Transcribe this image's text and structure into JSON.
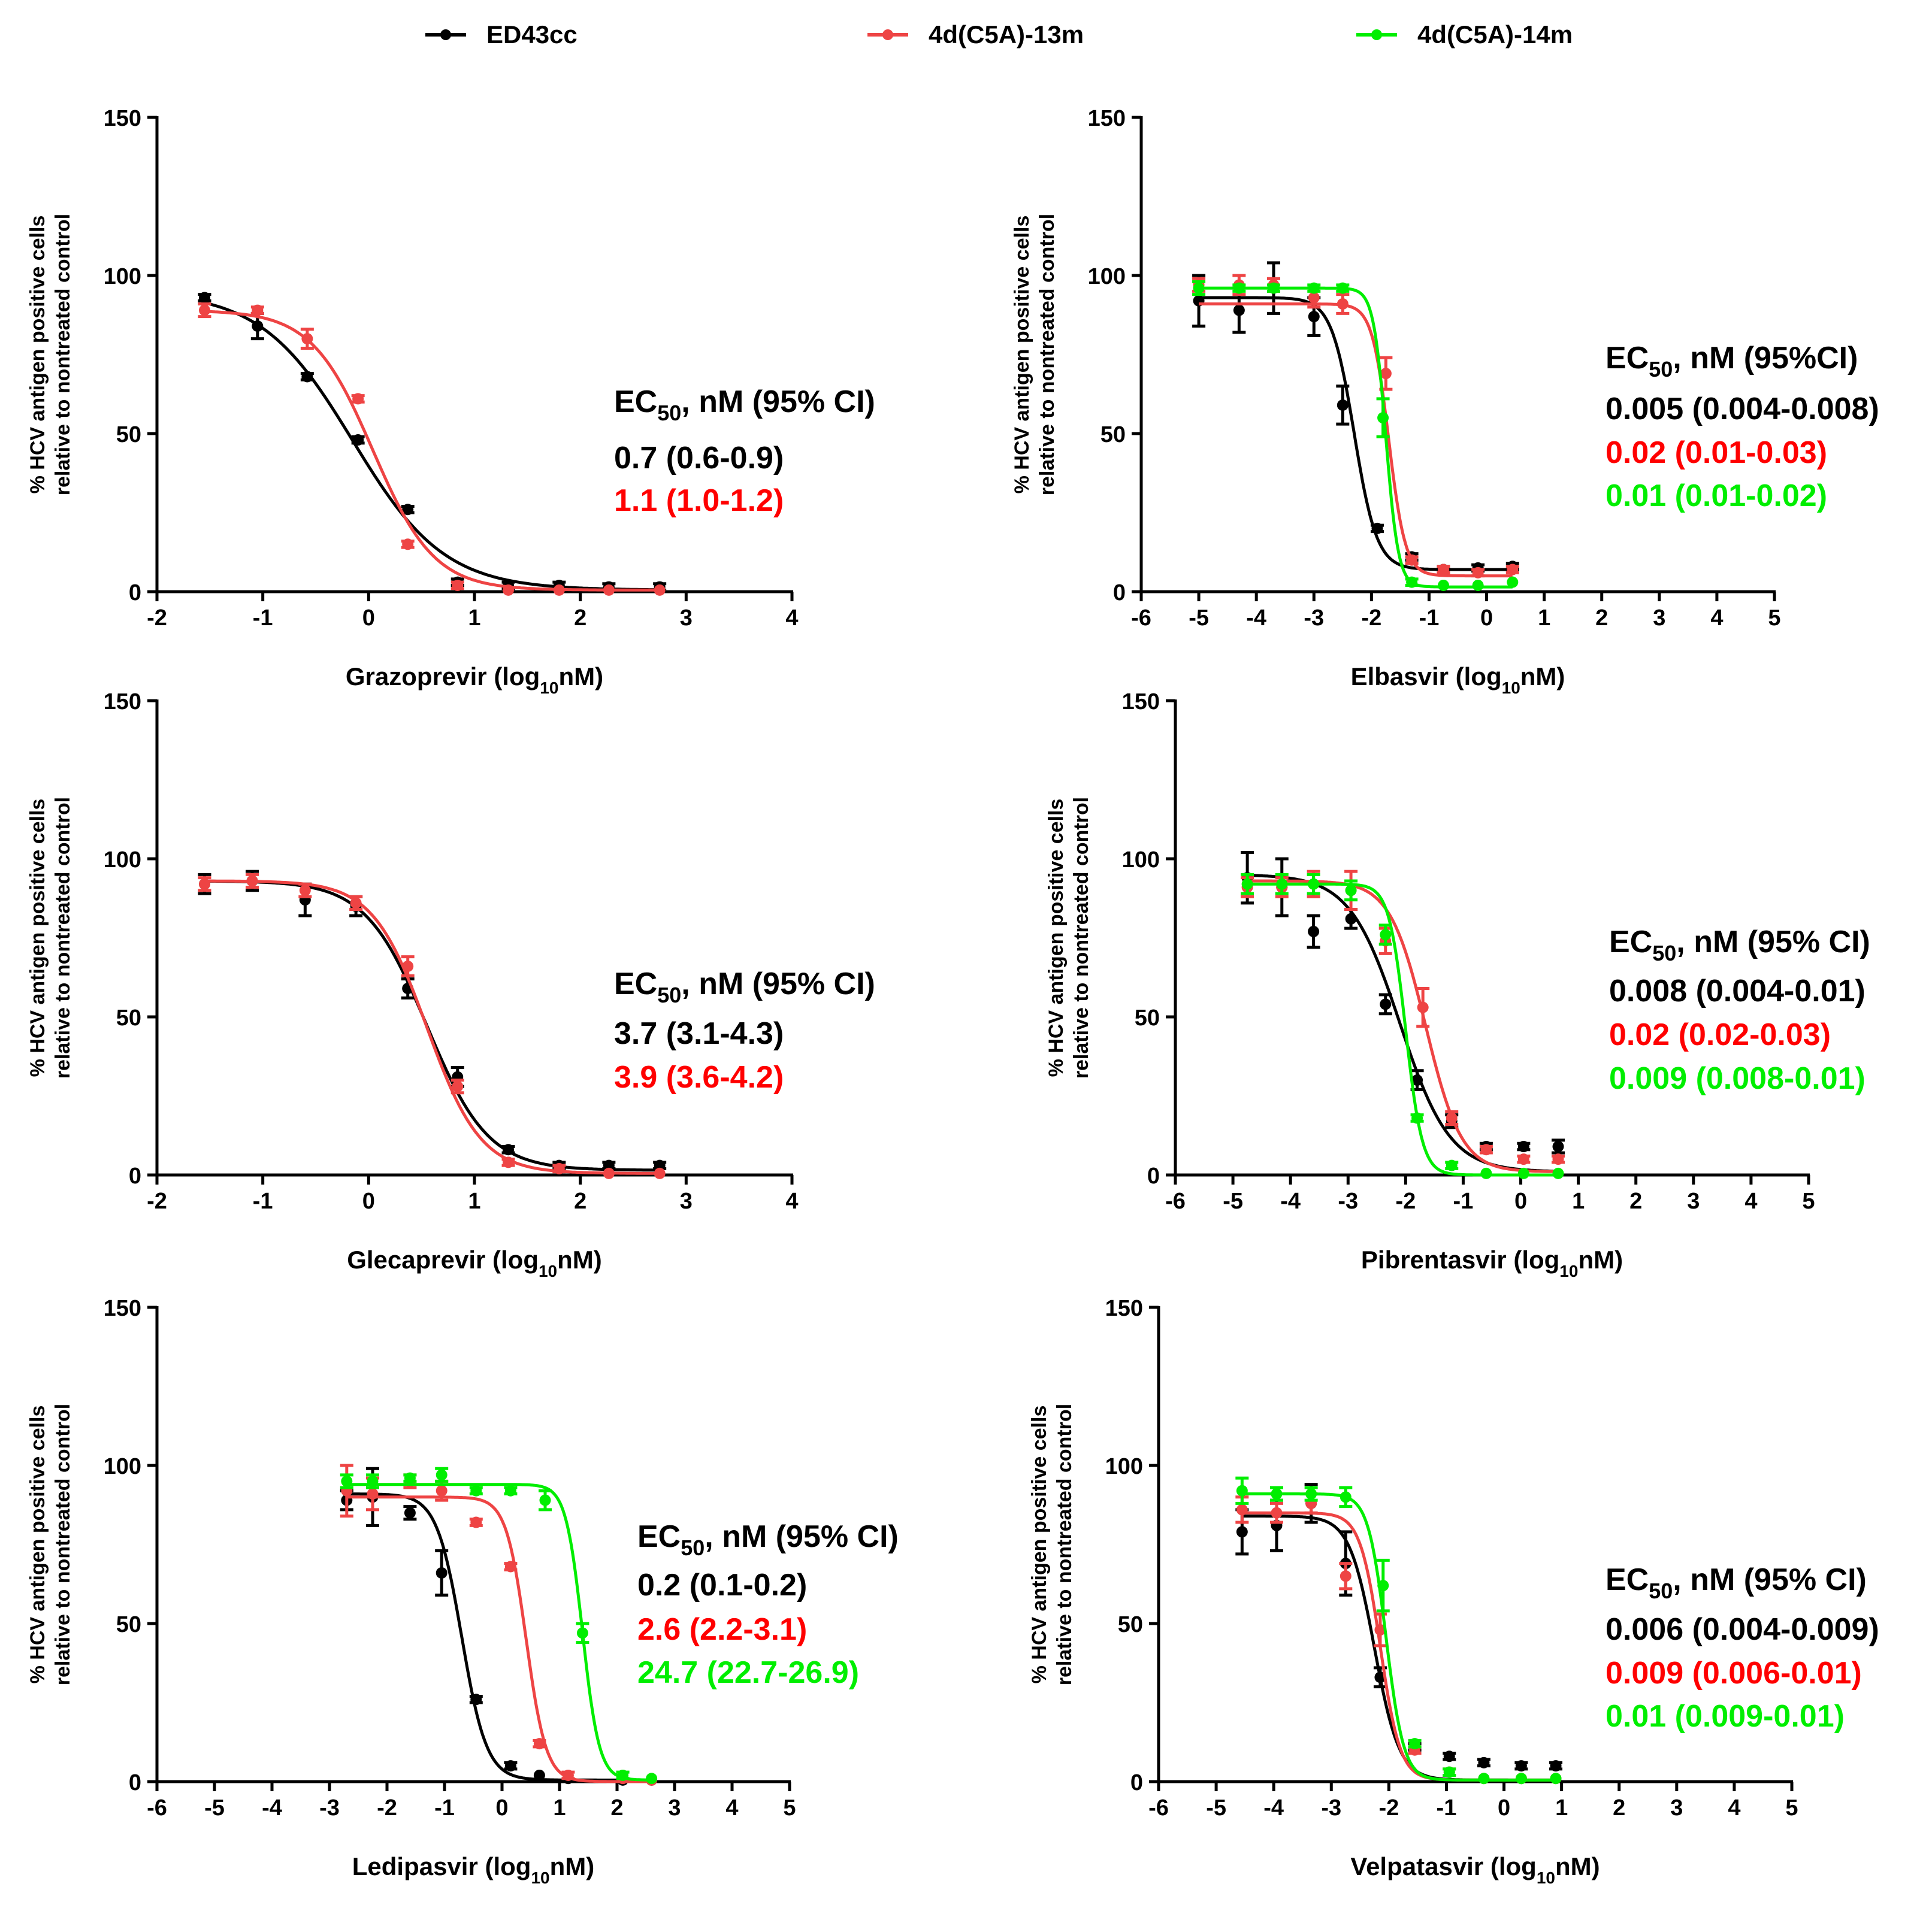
{
  "legend": {
    "entries": [
      {
        "name": "ED43cc",
        "color": "#000000"
      },
      {
        "name": "4d(C5A)-13m",
        "color": "#ee4444"
      },
      {
        "name": "4d(C5A)-14m",
        "color": "#00ee00"
      }
    ]
  },
  "colors": {
    "ED43cc": "#000000",
    "4d(C5A)-13m": "#ee4444",
    "4d(C5A)-14m": "#00ee00",
    "label_red": "#ff0000",
    "label_green": "#00ee00"
  },
  "chart_data": [
    {
      "type": "line",
      "id": "grazoprevir",
      "ylabel_line1": "% HCV antigen positive cells",
      "ylabel_line2": "relative to nontreated control",
      "xlabel_pre": "Grazoprevir (log",
      "xlabel_sub": "10",
      "xlabel_post": "nM)",
      "xlim": [
        -2,
        4
      ],
      "xticks": [
        -2,
        -1,
        0,
        1,
        2,
        3,
        4
      ],
      "ylim": [
        0,
        150
      ],
      "yticks": [
        0,
        50,
        100,
        150
      ],
      "ec50": {
        "header_pre": "EC",
        "header_sub": "50",
        "header_post": ", nM (95% CI)",
        "lines": [
          {
            "text": "0.7 (0.6-0.9)",
            "color": "#000000"
          },
          {
            "text": "1.1 (1.0-1.2)",
            "color": "#ff0000"
          }
        ]
      },
      "series": [
        {
          "name": "ED43cc",
          "color": "#000000",
          "top": 95,
          "bottom": 0.5,
          "logEC50": -0.15,
          "hill": -1.0,
          "x": [
            -1.55,
            -1.05,
            -0.58,
            -0.1,
            0.37,
            0.84,
            1.32,
            1.8,
            2.27,
            2.75
          ],
          "y": [
            93,
            84,
            68,
            48,
            26,
            3,
            2,
            2,
            1.5,
            1.5
          ],
          "err": [
            1,
            4,
            1,
            1,
            1,
            1,
            1,
            1,
            1,
            1
          ]
        },
        {
          "name": "4d(C5A)-13m",
          "color": "#ee4444",
          "top": 89,
          "bottom": 0.5,
          "logEC50": 0.04,
          "hill": -1.5,
          "x": [
            -1.55,
            -1.05,
            -0.58,
            -0.1,
            0.37,
            0.84,
            1.32,
            1.8,
            2.27,
            2.75
          ],
          "y": [
            89,
            89,
            80,
            61,
            15,
            2,
            0.5,
            0.5,
            0.5,
            0.5
          ],
          "err": [
            2,
            1,
            3,
            1,
            1,
            1,
            0.5,
            0.5,
            0.5,
            0.5
          ]
        }
      ]
    },
    {
      "type": "line",
      "id": "elbasvir",
      "ylabel_line1": "% HCV antigen positive cells",
      "ylabel_line2": "relative to nontreated control",
      "xlabel_pre": "Elbasvir (log",
      "xlabel_sub": "10",
      "xlabel_post": "nM)",
      "xlim": [
        -6,
        5
      ],
      "xticks": [
        -6,
        -5,
        -4,
        -3,
        -2,
        -1,
        0,
        1,
        2,
        3,
        4,
        5
      ],
      "ylim": [
        0,
        150
      ],
      "yticks": [
        0,
        50,
        100,
        150
      ],
      "ec50": {
        "header_pre": "EC",
        "header_sub": "50",
        "header_post": ", nM (95%CI)",
        "lines": [
          {
            "text": "0.005 (0.004-0.008)",
            "color": "#000000"
          },
          {
            "text": "0.02 (0.01-0.03)",
            "color": "#ff0000"
          },
          {
            "text": "0.01 (0.01-0.02)",
            "color": "#00ee00"
          }
        ]
      },
      "series": [
        {
          "name": "ED43cc",
          "color": "#000000",
          "top": 93,
          "bottom": 7,
          "logEC50": -2.3,
          "hill": -2.2,
          "x": [
            -5.0,
            -4.3,
            -3.7,
            -3.0,
            -2.5,
            -1.9,
            -1.3,
            -0.75,
            -0.15,
            0.45
          ],
          "y": [
            92,
            89,
            96,
            87,
            59,
            20,
            11,
            7,
            7.5,
            8
          ],
          "err": [
            8,
            7,
            8,
            6,
            6,
            1,
            1,
            1,
            1,
            1
          ]
        },
        {
          "name": "4d(C5A)-13m",
          "color": "#ee4444",
          "top": 91,
          "bottom": 5,
          "logEC50": -1.7,
          "hill": -3.0,
          "x": [
            -5.0,
            -4.3,
            -3.7,
            -3.0,
            -2.5,
            -1.75,
            -1.3,
            -0.75,
            -0.15,
            0.45
          ],
          "y": [
            97,
            97,
            97,
            93,
            91,
            69,
            10,
            7,
            6,
            7
          ],
          "err": [
            2,
            3,
            2,
            3,
            3,
            5,
            1,
            1,
            1,
            1
          ]
        },
        {
          "name": "4d(C5A)-14m",
          "color": "#00ee00",
          "top": 96,
          "bottom": 1.5,
          "logEC50": -1.75,
          "hill": -4.0,
          "x": [
            -5.0,
            -4.3,
            -3.7,
            -3.0,
            -2.5,
            -1.8,
            -1.3,
            -0.75,
            -0.15,
            0.45
          ],
          "y": [
            96,
            96,
            96,
            96,
            96,
            55,
            3,
            2,
            2,
            3
          ],
          "err": [
            2,
            1,
            1,
            1,
            1,
            6,
            1,
            0.5,
            0.5,
            0.5
          ]
        }
      ]
    },
    {
      "type": "line",
      "id": "glecaprevir",
      "ylabel_line1": "% HCV antigen positive cells",
      "ylabel_line2": "relative to nontreated control",
      "xlabel_pre": "Glecaprevir (log",
      "xlabel_sub": "10",
      "xlabel_post": "nM)",
      "xlim": [
        -2,
        4
      ],
      "xticks": [
        -2,
        -1,
        0,
        1,
        2,
        3,
        4
      ],
      "ylim": [
        0,
        150
      ],
      "yticks": [
        0,
        50,
        100,
        150
      ],
      "ec50": {
        "header_pre": "EC",
        "header_sub": "50",
        "header_post": ", nM (95% CI)",
        "lines": [
          {
            "text": "3.7 (3.1-4.3)",
            "color": "#000000"
          },
          {
            "text": "3.9 (3.6-4.2)",
            "color": "#ff0000"
          }
        ]
      },
      "series": [
        {
          "name": "ED43cc",
          "color": "#000000",
          "top": 93,
          "bottom": 1.5,
          "logEC50": 0.55,
          "hill": -1.5,
          "x": [
            -1.55,
            -1.1,
            -0.6,
            -0.12,
            0.37,
            0.84,
            1.32,
            1.8,
            2.27,
            2.75
          ],
          "y": [
            92,
            93,
            87,
            85,
            59,
            31,
            8,
            3,
            3,
            3
          ],
          "err": [
            3,
            3,
            5,
            3,
            3,
            3,
            1,
            1,
            1,
            1
          ]
        },
        {
          "name": "4d(C5A)-13m",
          "color": "#ee4444",
          "top": 93,
          "bottom": 0.5,
          "logEC50": 0.55,
          "hill": -1.7,
          "x": [
            -1.55,
            -1.1,
            -0.6,
            -0.12,
            0.37,
            0.84,
            1.32,
            1.8,
            2.27,
            2.75
          ],
          "y": [
            92,
            93,
            90,
            86,
            66,
            28,
            4,
            2,
            0.5,
            0.5
          ],
          "err": [
            2,
            2,
            2,
            2,
            3,
            2,
            1,
            1,
            0.5,
            0.5
          ]
        }
      ]
    },
    {
      "type": "line",
      "id": "pibrentasvir",
      "ylabel_line1": "% HCV antigen positive cells",
      "ylabel_line2": "relative to nontreated control",
      "xlabel_pre": "Pibrentasvir (log",
      "xlabel_sub": "10",
      "xlabel_post": "nM)",
      "xlim": [
        -6,
        5
      ],
      "xticks": [
        -6,
        -5,
        -4,
        -3,
        -2,
        -1,
        0,
        1,
        2,
        3,
        4,
        5
      ],
      "ylim": [
        0,
        150
      ],
      "yticks": [
        0,
        50,
        100,
        150
      ],
      "ec50": {
        "header_pre": "EC",
        "header_sub": "50",
        "header_post": ", nM (95% CI)",
        "lines": [
          {
            "text": "0.008 (0.004-0.01)",
            "color": "#000000"
          },
          {
            "text": "0.02 (0.02-0.03)",
            "color": "#ff0000"
          },
          {
            "text": "0.009 (0.008-0.01)",
            "color": "#00ee00"
          }
        ]
      },
      "series": [
        {
          "name": "ED43cc",
          "color": "#000000",
          "top": 95,
          "bottom": 1,
          "logEC50": -2.1,
          "hill": -1.0,
          "x": [
            -4.75,
            -4.15,
            -3.6,
            -2.95,
            -2.35,
            -1.8,
            -1.2,
            -0.6,
            0.05,
            0.65
          ],
          "y": [
            94,
            91,
            77,
            81,
            54,
            30,
            17,
            9,
            9,
            9
          ],
          "err": [
            8,
            9,
            5,
            3,
            3,
            3,
            2,
            1,
            1,
            2
          ]
        },
        {
          "name": "4d(C5A)-13m",
          "color": "#ee4444",
          "top": 93,
          "bottom": 1,
          "logEC50": -1.65,
          "hill": -1.4,
          "x": [
            -4.75,
            -4.15,
            -3.6,
            -2.95,
            -2.35,
            -1.7,
            -1.2,
            -0.6,
            0.05,
            0.65
          ],
          "y": [
            91,
            91,
            92,
            90,
            74,
            53,
            18,
            8,
            5,
            5
          ],
          "err": [
            3,
            3,
            4,
            6,
            4,
            6,
            2,
            1,
            1,
            1
          ]
        },
        {
          "name": "4d(C5A)-14m",
          "color": "#00ee00",
          "top": 92,
          "bottom": 0,
          "logEC50": -2.0,
          "hill": -3.0,
          "x": [
            -4.75,
            -4.15,
            -3.6,
            -2.95,
            -2.35,
            -1.8,
            -1.2,
            -0.6,
            0.05,
            0.65
          ],
          "y": [
            92,
            92,
            92,
            90,
            76,
            18,
            3,
            0.5,
            0.5,
            0.5
          ],
          "err": [
            3,
            3,
            3,
            3,
            3,
            1,
            1,
            0.5,
            0.5,
            0.5
          ]
        }
      ]
    },
    {
      "type": "line",
      "id": "ledipasvir",
      "ylabel_line1": "% HCV antigen positive cells",
      "ylabel_line2": "relative to nontreated control",
      "xlabel_pre": "Ledipasvir (log",
      "xlabel_sub": "10",
      "xlabel_post": "nM)",
      "xlim": [
        -6,
        5
      ],
      "xticks": [
        -6,
        -5,
        -4,
        -3,
        -2,
        -1,
        0,
        1,
        2,
        3,
        4,
        5
      ],
      "ylim": [
        0,
        150
      ],
      "yticks": [
        0,
        50,
        100,
        150
      ],
      "ec50": {
        "header_pre": "EC",
        "header_sub": "50",
        "header_post": ", nM (95% CI)",
        "lines": [
          {
            "text": "0.2 (0.1-0.2)",
            "color": "#000000"
          },
          {
            "text": "2.6 (2.2-3.1)",
            "color": "#ff0000"
          },
          {
            "text": "24.7 (22.7-26.9)",
            "color": "#00ee00"
          }
        ]
      },
      "series": [
        {
          "name": "ED43cc",
          "color": "#000000",
          "top": 91,
          "bottom": 0.5,
          "logEC50": -0.7,
          "hill": -2.0,
          "x": [
            -2.7,
            -2.25,
            -1.6,
            -1.05,
            -0.45,
            0.15,
            0.65,
            1.15,
            2.1,
            2.6
          ],
          "y": [
            89,
            90,
            85,
            66,
            26,
            5,
            2,
            1,
            0.5,
            0.5
          ],
          "err": [
            3,
            9,
            2,
            7,
            1,
            1,
            0.5,
            0.5,
            0.5,
            0.5
          ]
        },
        {
          "name": "4d(C5A)-13m",
          "color": "#ee4444",
          "top": 90,
          "bottom": 0,
          "logEC50": 0.42,
          "hill": -2.5,
          "x": [
            -2.7,
            -2.25,
            -1.6,
            -1.05,
            -0.45,
            0.15,
            0.65,
            1.15,
            2.1,
            2.6
          ],
          "y": [
            92,
            91,
            95,
            92,
            82,
            68,
            12,
            2,
            1,
            0.5
          ],
          "err": [
            8,
            5,
            2,
            3,
            1,
            1,
            1,
            1,
            0.5,
            0.5
          ]
        },
        {
          "name": "4d(C5A)-14m",
          "color": "#00ee00",
          "top": 94,
          "bottom": 0.5,
          "logEC50": 1.4,
          "hill": -3.0,
          "x": [
            -2.7,
            -2.25,
            -1.6,
            -1.05,
            -0.45,
            0.15,
            0.75,
            1.4,
            2.1,
            2.6
          ],
          "y": [
            95,
            95,
            96,
            97,
            92,
            92,
            89,
            47,
            2,
            1
          ],
          "err": [
            2,
            2,
            1,
            2,
            1,
            1,
            3,
            3,
            1,
            0.5
          ]
        }
      ]
    },
    {
      "type": "line",
      "id": "velpatasvir",
      "ylabel_line1": "% HCV antigen positive cells",
      "ylabel_line2": "relative to nontreated control",
      "xlabel_pre": "Velpatasvir (log",
      "xlabel_sub": "10",
      "xlabel_post": "nM)",
      "xlim": [
        -6,
        5
      ],
      "xticks": [
        -6,
        -5,
        -4,
        -3,
        -2,
        -1,
        0,
        1,
        2,
        3,
        4,
        5
      ],
      "ylim": [
        0,
        150
      ],
      "yticks": [
        0,
        50,
        100,
        150
      ],
      "ec50": {
        "header_pre": "EC",
        "header_sub": "50",
        "header_post": ", nM (95% CI)",
        "lines": [
          {
            "text": "0.006 (0.004-0.009)",
            "color": "#000000"
          },
          {
            "text": "0.009 (0.006-0.01)",
            "color": "#ff0000"
          },
          {
            "text": "0.01 (0.009-0.01)",
            "color": "#00ee00"
          }
        ]
      },
      "series": [
        {
          "name": "ED43cc",
          "color": "#000000",
          "top": 84,
          "bottom": 0.5,
          "logEC50": -2.25,
          "hill": -2.0,
          "x": [
            -4.55,
            -3.95,
            -3.35,
            -2.75,
            -2.15,
            -1.55,
            -0.95,
            -0.35,
            0.3,
            0.9
          ],
          "y": [
            79,
            81,
            88,
            69,
            33,
            11,
            8,
            6,
            5,
            5
          ],
          "err": [
            7,
            8,
            6,
            10,
            3,
            1,
            1,
            1,
            1,
            1
          ]
        },
        {
          "name": "4d(C5A)-13m",
          "color": "#ee4444",
          "top": 85,
          "bottom": 0.5,
          "logEC50": -2.15,
          "hill": -2.5,
          "x": [
            -4.55,
            -3.95,
            -3.35,
            -2.75,
            -2.15,
            -1.55,
            -0.95,
            -0.35,
            0.3,
            0.9
          ],
          "y": [
            86,
            85,
            88,
            65,
            48,
            10,
            3,
            1,
            1,
            1
          ],
          "err": [
            4,
            3,
            3,
            4,
            5,
            1,
            1,
            0.5,
            0.5,
            0.5
          ]
        },
        {
          "name": "4d(C5A)-14m",
          "color": "#00ee00",
          "top": 91,
          "bottom": 0.5,
          "logEC50": -2.05,
          "hill": -2.8,
          "x": [
            -4.55,
            -3.95,
            -3.35,
            -2.75,
            -2.1,
            -1.55,
            -0.95,
            -0.35,
            0.3,
            0.9
          ],
          "y": [
            92,
            91,
            91,
            90,
            62,
            12,
            3,
            1,
            1,
            1
          ],
          "err": [
            4,
            2,
            2,
            3,
            8,
            1,
            1,
            0.5,
            0.5,
            0.5
          ]
        }
      ]
    }
  ]
}
